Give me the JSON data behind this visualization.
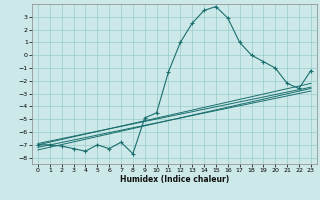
{
  "title": "",
  "xlabel": "Humidex (Indice chaleur)",
  "bg_color": "#cce8e8",
  "grid_color": "#99cccc",
  "line_color": "#1a6e6e",
  "xlim": [
    -0.5,
    23.5
  ],
  "ylim": [
    -8.5,
    4.0
  ],
  "xticks": [
    0,
    1,
    2,
    3,
    4,
    5,
    6,
    7,
    8,
    9,
    10,
    11,
    12,
    13,
    14,
    15,
    16,
    17,
    18,
    19,
    20,
    21,
    22,
    23
  ],
  "yticks": [
    -8,
    -7,
    -6,
    -5,
    -4,
    -3,
    -2,
    -1,
    0,
    1,
    2,
    3
  ],
  "curve_x": [
    0,
    1,
    2,
    3,
    4,
    5,
    6,
    7,
    8,
    9,
    10,
    11,
    12,
    13,
    14,
    15,
    16,
    17,
    18,
    19,
    20,
    21,
    22,
    23
  ],
  "curve_y": [
    -7.0,
    -7.0,
    -7.1,
    -7.3,
    -7.5,
    -7.0,
    -7.3,
    -6.8,
    -7.7,
    -4.9,
    -4.5,
    -1.3,
    1.0,
    2.5,
    3.5,
    3.8,
    2.9,
    1.0,
    0.0,
    -0.5,
    -1.0,
    -2.2,
    -2.6,
    -1.2
  ],
  "line1_x": [
    0,
    23
  ],
  "line1_y": [
    -7.2,
    -2.8
  ],
  "line2_x": [
    0,
    23
  ],
  "line2_y": [
    -6.9,
    -2.5
  ],
  "line3_x": [
    0,
    23
  ],
  "line3_y": [
    -7.0,
    -2.2
  ],
  "line4_x": [
    0,
    23
  ],
  "line4_y": [
    -7.4,
    -2.6
  ]
}
